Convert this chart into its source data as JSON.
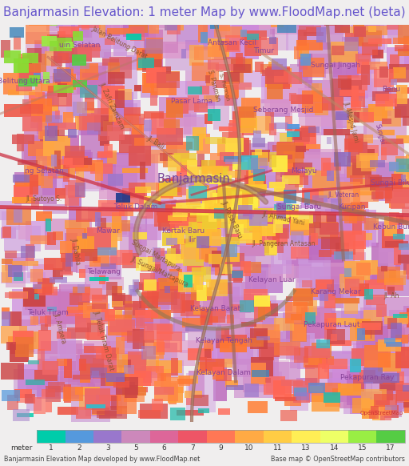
{
  "title": "Banjarmasin Elevation: 1 meter Map by www.FloodMap.net (beta)",
  "title_color": "#6655cc",
  "title_bg": "#f0eeee",
  "title_fontsize": 11.0,
  "figsize": [
    5.12,
    5.82
  ],
  "dpi": 100,
  "colorbar_ticks": [
    "meter",
    "1",
    "2",
    "3",
    "5",
    "6",
    "7",
    "9",
    "10",
    "11",
    "13",
    "14",
    "15",
    "17"
  ],
  "colorbar_colors": [
    "#00ccaa",
    "#5599dd",
    "#9977cc",
    "#cc88bb",
    "#dd6699",
    "#ee5566",
    "#ff7755",
    "#ffaa44",
    "#ffcc44",
    "#ffee55",
    "#eeff66",
    "#99ee44",
    "#55cc44"
  ],
  "bottom_left_text": "Banjarmasin Elevation Map developed by www.FloodMap.net",
  "bottom_right_text": "Base map © OpenStreetMap contributors",
  "map_bg": "#cc88cc",
  "label_color": "#884499",
  "road_dark": "#aa7755",
  "road_red": "#cc3344"
}
